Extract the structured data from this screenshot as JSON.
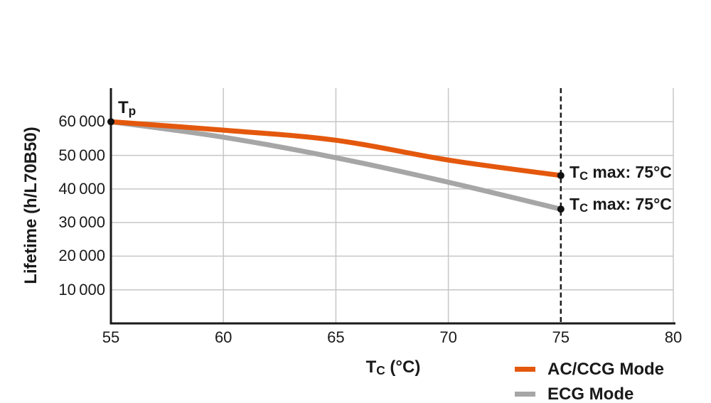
{
  "page": {
    "background": "#ffffff",
    "text_color": "#1a1a1a"
  },
  "chart": {
    "ylabel": "Lifetime (h/L70B50)",
    "xlabel": {
      "main": "T",
      "sub": "C",
      "rest": " (°C)"
    },
    "tp_annotation": {
      "main": "T",
      "sub": "p"
    },
    "ac_max_annotation": {
      "main": "T",
      "sub": "C",
      "rest": " max: 75°C"
    },
    "ecg_max_annotation": {
      "main": "T",
      "sub": "C",
      "rest": " max: 75°C"
    },
    "legend": {
      "items": [
        {
          "label": "AC/CCG Mode",
          "color": "#E4580D"
        },
        {
          "label": "ECG Mode",
          "color": "#A6A6A6"
        }
      ]
    }
  },
  "chart_data": {
    "type": "line",
    "title": "",
    "xlabel": "Tc (°C)",
    "ylabel": "Lifetime (h/L70B50)",
    "x": [
      55,
      60,
      65,
      70,
      75
    ],
    "series": [
      {
        "name": "AC/CCG Mode",
        "color": "#E4580D",
        "values": [
          60000,
          57500,
          54500,
          48600,
          44000
        ]
      },
      {
        "name": "ECG Mode",
        "color": "#A6A6A6",
        "values": [
          60000,
          55400,
          49300,
          42000,
          34000
        ]
      }
    ],
    "xlim": [
      55,
      80
    ],
    "ylim": [
      0,
      70000
    ],
    "xticks": [
      55,
      60,
      65,
      70,
      75,
      80
    ],
    "xtick_labels": [
      "55",
      "60",
      "65",
      "70",
      "75",
      "80"
    ],
    "yticks": [
      10000,
      20000,
      30000,
      40000,
      50000,
      60000
    ],
    "ytick_labels": [
      "10 000",
      "20 000",
      "30 000",
      "40 000",
      "50 000",
      "60 000"
    ],
    "grid": true,
    "grid_color": "#C7C7C7",
    "axis_color": "#1a1a1a",
    "dashed_vline_x": 75,
    "markers": [
      {
        "x": 55,
        "value": 60000,
        "series": "both"
      },
      {
        "x": 75,
        "value": 44000,
        "series": "AC/CCG Mode"
      },
      {
        "x": 75,
        "value": 34000,
        "series": "ECG Mode"
      }
    ],
    "legend_position": "bottom-right"
  }
}
